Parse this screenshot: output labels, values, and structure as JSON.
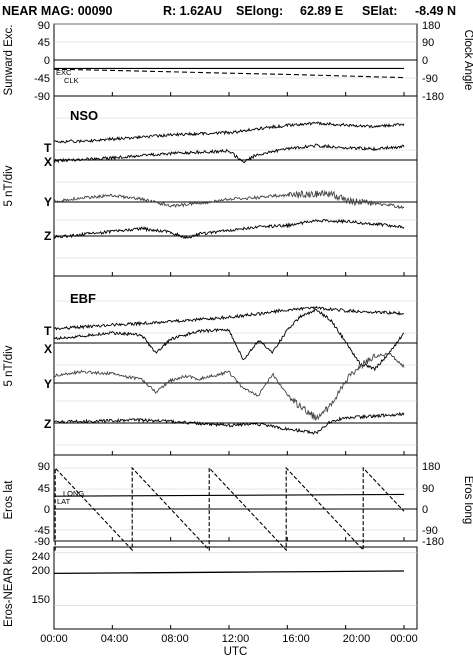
{
  "title": {
    "prefix": "NEAR MAG: 00090",
    "distance": "R: 1.62AU",
    "selong_label": "SElong:",
    "selong_value": "62.89 E",
    "selat_label": "SElat:",
    "selat_value": "-8.49 N"
  },
  "x_axis": {
    "label": "UTC",
    "ticks": [
      "00:00",
      "04:00",
      "08:00",
      "12:00",
      "16:00",
      "20:00",
      "00:00"
    ],
    "range_hours": [
      0,
      24
    ]
  },
  "chart_data": [
    {
      "type": "line",
      "id": "sunward",
      "ylabel_left": "Sunward Exc.",
      "ylabel_right": "Clock Angle",
      "yticks_left": [
        "90",
        "45",
        "0",
        "-45",
        "-90"
      ],
      "yticks_right": [
        "180",
        "90",
        "0",
        "-90",
        "-180"
      ],
      "ylim_left": [
        -90,
        90
      ],
      "ylim_right": [
        -180,
        180
      ],
      "legend": [
        "EXC",
        "CLK"
      ],
      "series": [
        {
          "name": "EXC",
          "style": "solid",
          "x": [
            0,
            24
          ],
          "y": [
            -21,
            -21
          ]
        },
        {
          "name": "CLK",
          "style": "dashed",
          "x": [
            0,
            4,
            8,
            12,
            16,
            20,
            24
          ],
          "y": [
            -46,
            -52,
            -59,
            -66,
            -72,
            -80,
            -88
          ]
        }
      ]
    },
    {
      "type": "line",
      "id": "nso",
      "panel_label": "NSO",
      "ylabel_left": "5 nT/div",
      "components": [
        "T",
        "X",
        "Y",
        "Z"
      ],
      "series": [
        {
          "name": "T",
          "x": [
            0,
            2,
            4,
            6,
            8,
            10,
            12,
            13,
            14,
            16,
            18,
            20,
            22,
            24
          ],
          "y": [
            1.2,
            1.4,
            1.8,
            2.2,
            2.6,
            2.9,
            3.1,
            3.4,
            3.9,
            4.5,
            5.0,
            4.6,
            4.3,
            4.8
          ]
        },
        {
          "name": "X",
          "x": [
            0,
            2,
            4,
            6,
            8,
            10,
            12,
            13,
            14,
            16,
            18,
            20,
            22,
            24
          ],
          "y": [
            -0.2,
            0.1,
            0.4,
            0.9,
            1.3,
            1.6,
            1.8,
            -0.4,
            1.2,
            2.2,
            2.9,
            2.5,
            2.2,
            2.7
          ]
        },
        {
          "name": "Y",
          "x": [
            0,
            2,
            4,
            6,
            8,
            10,
            12,
            14,
            16,
            18,
            19,
            20,
            22,
            23,
            24
          ],
          "y": [
            0.1,
            0.8,
            1.3,
            0.6,
            -0.8,
            -0.3,
            0.6,
            0.9,
            1.4,
            1.6,
            1.8,
            0.2,
            -0.3,
            -0.6,
            -1.2
          ]
        },
        {
          "name": "Z",
          "x": [
            0,
            2,
            4,
            6,
            8,
            9,
            10,
            12,
            14,
            16,
            18,
            20,
            22,
            24
          ],
          "y": [
            -0.2,
            0.3,
            0.9,
            1.5,
            0.8,
            -0.4,
            0.4,
            1.1,
            1.8,
            2.1,
            3.1,
            2.9,
            2.4,
            1.8
          ]
        }
      ]
    },
    {
      "type": "line",
      "id": "ebf",
      "panel_label": "EBF",
      "ylabel_left": "5 nT/div",
      "components": [
        "T",
        "X",
        "Y",
        "Z"
      ],
      "series": [
        {
          "name": "T",
          "x": [
            0,
            2,
            4,
            6,
            8,
            10,
            12,
            14,
            16,
            18,
            20,
            22,
            24
          ],
          "y": [
            0.4,
            0.8,
            1.2,
            1.5,
            1.9,
            2.3,
            2.8,
            3.4,
            4.3,
            4.6,
            4.1,
            3.8,
            3.5
          ]
        },
        {
          "name": "X",
          "x": [
            0,
            2,
            4,
            6,
            7,
            8,
            10,
            12,
            13,
            14,
            15,
            16,
            17,
            18,
            19,
            20,
            21,
            22,
            23,
            24
          ],
          "y": [
            0.8,
            1.4,
            2.0,
            1.6,
            -2.0,
            0.8,
            2.4,
            2.6,
            -3.5,
            0.5,
            -1.8,
            2.6,
            5.5,
            6.6,
            4.5,
            0.2,
            -4.2,
            -5.2,
            -2.0,
            2.0
          ]
        },
        {
          "name": "Y",
          "x": [
            0,
            2,
            4,
            6,
            7,
            8,
            9,
            10,
            12,
            13,
            14,
            15,
            16,
            17,
            18,
            19,
            20,
            21,
            22,
            23,
            24
          ],
          "y": [
            1.5,
            2.3,
            1.8,
            0.7,
            -1.8,
            0.5,
            1.4,
            0.8,
            2.2,
            -1.2,
            -2.5,
            1.8,
            -2.5,
            -5.0,
            -7.0,
            -4.5,
            0.5,
            3.5,
            5.2,
            6.0,
            3.2
          ]
        },
        {
          "name": "Z",
          "x": [
            0,
            2,
            4,
            6,
            8,
            10,
            12,
            14,
            16,
            18,
            19,
            20,
            22,
            24
          ],
          "y": [
            0.2,
            0.3,
            0.5,
            0.6,
            0.3,
            -0.1,
            -0.5,
            -0.2,
            -1.2,
            -2.0,
            0.4,
            1.0,
            1.4,
            1.8
          ]
        }
      ]
    },
    {
      "type": "line",
      "id": "eros",
      "ylabel_left": "Eros lat",
      "ylabel_right": "Eros long",
      "yticks_left": [
        "90",
        "45",
        "0",
        "-45",
        "-90"
      ],
      "yticks_right": [
        "180",
        "90",
        "0",
        "-90",
        "-180"
      ],
      "ylim_left": [
        -90,
        90
      ],
      "ylim_right": [
        -180,
        180
      ],
      "legend": [
        "LONG",
        "LAT"
      ],
      "series": [
        {
          "name": "LAT",
          "style": "solid",
          "x": [
            0,
            24
          ],
          "y": [
            28,
            32
          ]
        },
        {
          "name": "LONG",
          "style": "dashed",
          "x": [
            0,
            0.08,
            0.08,
            5.36,
            5.36,
            10.64,
            10.64,
            15.92,
            15.92,
            21.2,
            21.2,
            24
          ],
          "y": [
            -180,
            -180,
            180,
            -180,
            180,
            -180,
            180,
            -180,
            180,
            -180,
            180,
            -10
          ]
        }
      ]
    },
    {
      "type": "line",
      "id": "range",
      "ylabel_left": "Eros-NEAR km",
      "yticks_left": [
        "240",
        "200",
        "150"
      ],
      "ylim_left": [
        110,
        250
      ],
      "series": [
        {
          "name": "",
          "style": "solid",
          "x": [
            0,
            6,
            12,
            18,
            24
          ],
          "y": [
            205,
            206,
            207,
            208,
            209
          ]
        }
      ]
    }
  ]
}
